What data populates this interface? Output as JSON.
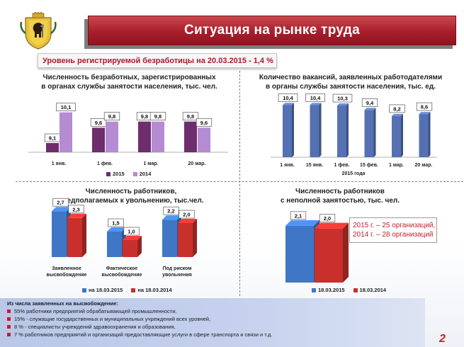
{
  "header": {
    "title": "Ситуация на рынке труда",
    "rate_line": "Уровень регистрируемой безработицы на 20.03.2015  - 1,4 %"
  },
  "colors": {
    "accent_red": "#b0172a",
    "banner_red": "#a91d2b",
    "dark_purple": "#6e2d6c",
    "light_purple": "#b58bd1",
    "blue": "#3f77c6",
    "red": "#c9302c",
    "vacancy_blue": "#5571b3"
  },
  "chart_data": [
    {
      "type": "bar",
      "title_line1": "Численность безработных, зарегистрированных",
      "title_line2": "в органах службы занятости населения, тыс. чел.",
      "categories": [
        "1 янв.",
        "1 фев.",
        "1 мар.",
        "20 мар."
      ],
      "series": [
        {
          "name": "2015",
          "color": "#6e2d6c",
          "values": [
            9.1,
            9.6,
            9.8,
            9.8
          ],
          "labels": [
            "9,1",
            "9,6",
            "9,8",
            "9,8"
          ]
        },
        {
          "name": "2014",
          "color": "#b58bd1",
          "values": [
            10.1,
            9.8,
            9.8,
            9.6
          ],
          "labels": [
            "10,1",
            "9,8",
            "9,8",
            "9,6"
          ]
        }
      ],
      "ylim": [
        8.8,
        10.3
      ]
    },
    {
      "type": "bar",
      "title_line1": "Количество вакансий, заявленных работодателями",
      "title_line2": "в органы службы занятости населения, тыс. ед.",
      "categories": [
        "1 янв.",
        "15 янв.",
        "1 фев.",
        "15 фев.",
        "1 мар.",
        "20 мар."
      ],
      "values": [
        10.4,
        10.4,
        10.3,
        9.4,
        8.2,
        8.6
      ],
      "labels": [
        "10,4",
        "10,4",
        "10,3",
        "9,4",
        "8,2",
        "8,6"
      ],
      "xlabel": "2015 года",
      "color": "#5571b3",
      "ylim": [
        0,
        12
      ]
    },
    {
      "type": "bar",
      "title_line1": "Численность работников,",
      "title_line2": "предполагаемых  к увольнению, тыс.чел.",
      "categories": [
        "Заявленное высвобождение",
        "Фактическое высвобождение",
        "Под риском увольнения"
      ],
      "category_lines": [
        [
          "Заявленное",
          "высвобождение"
        ],
        [
          "Фактическое",
          "высвобождение"
        ],
        [
          "Под риском",
          "увольнения"
        ]
      ],
      "series": [
        {
          "name": "на 18.03.2015",
          "color": "#3f77c6",
          "values": [
            2.7,
            1.5,
            2.2
          ],
          "labels": [
            "2,7",
            "1,5",
            "2,2"
          ]
        },
        {
          "name": "на 18.03.2014",
          "color": "#c9302c",
          "values": [
            2.3,
            1.0,
            2.0
          ],
          "labels": [
            "2,3",
            "1,0",
            "2,0"
          ]
        }
      ],
      "ylim": [
        0,
        3
      ]
    },
    {
      "type": "bar",
      "title_line1": "Численность работников",
      "title_line2": "с неполной занятостью, тыс. чел.",
      "categories": [
        ""
      ],
      "series": [
        {
          "name": "18.03.2015",
          "color": "#3f77c6",
          "values": [
            2.1
          ],
          "labels": [
            "2,1"
          ]
        },
        {
          "name": "18.03.2014",
          "color": "#c9302c",
          "values": [
            2.0
          ],
          "labels": [
            "2,0"
          ]
        }
      ],
      "ylim": [
        0,
        2.2
      ]
    }
  ],
  "org_note": {
    "line1": "2015 г. – 25 организаций,",
    "line2": "2014 г. – 28 организаций"
  },
  "footer": {
    "heading": "Из числа заявленных на высвобождение:",
    "items": [
      "55% работники предприятий обрабатывающей промышленности,",
      "15% - служащие государственных и муниципальных учреждений всех уровней,",
      "8 % -  специалисты учреждений здравоохранения и образования,",
      "7 % работников предприятий и организаций предоставляющие услуги в сфере транспорта и связи и т.д."
    ]
  },
  "page_number": "2"
}
